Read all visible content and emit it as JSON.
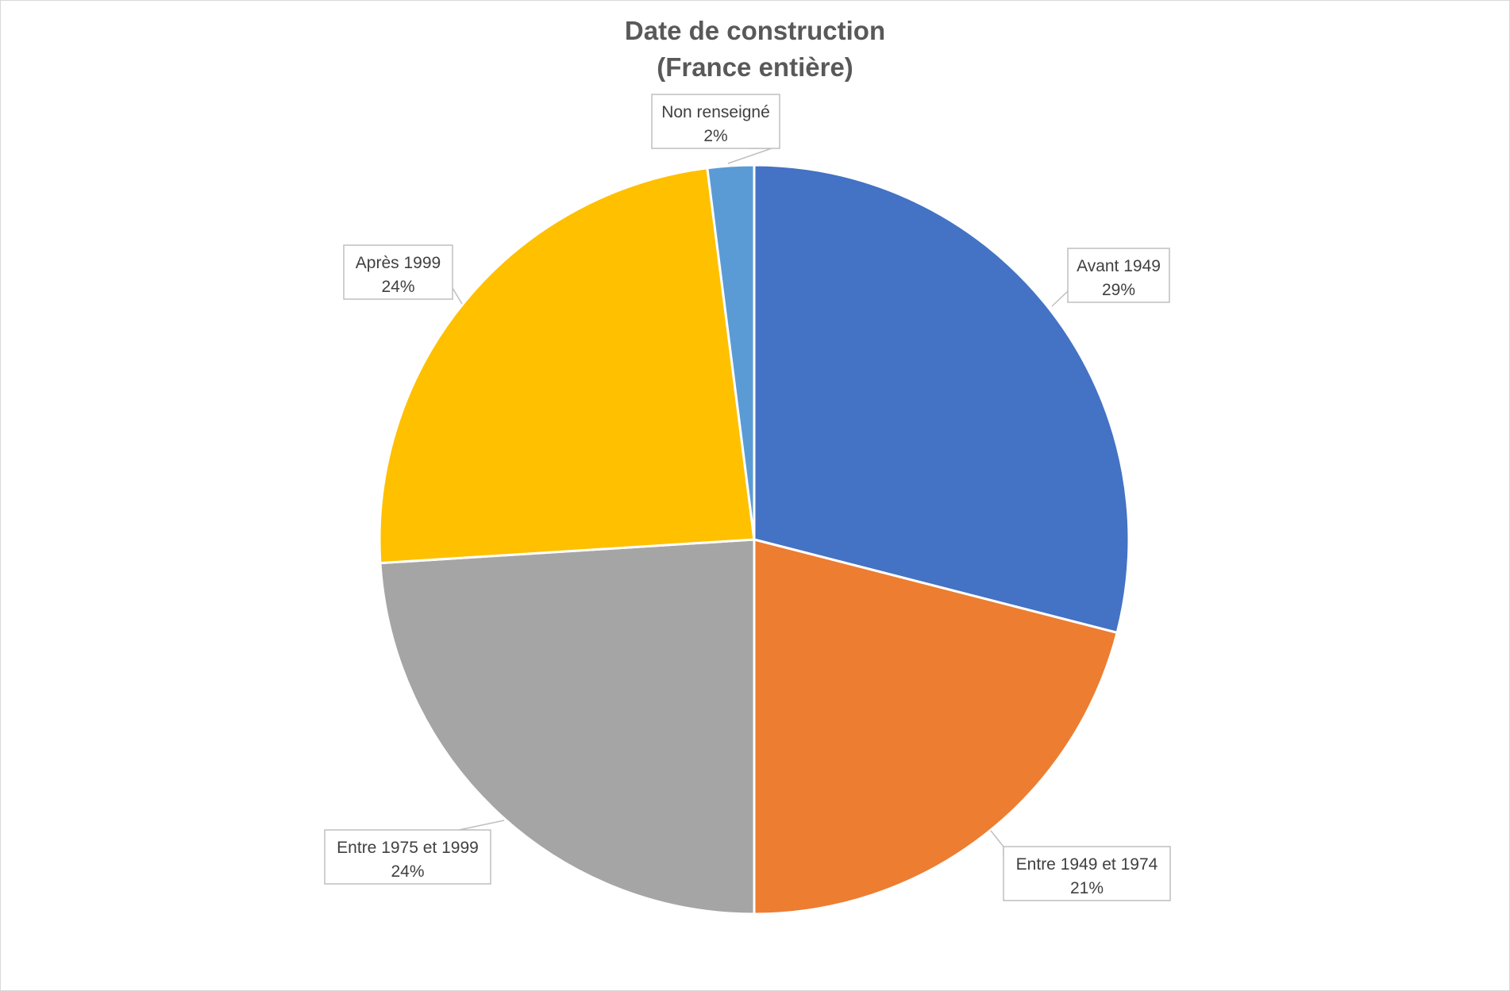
{
  "chart_data": {
    "type": "pie",
    "title": "Date de construction",
    "subtitle": "(France entière)",
    "slices": [
      {
        "name": "Avant 1949",
        "value": 29,
        "label": "29%",
        "color": "#4472C4"
      },
      {
        "name": "Entre 1949 et 1974",
        "value": 21,
        "label": "21%",
        "color": "#ED7D31"
      },
      {
        "name": "Entre 1975 et 1999",
        "value": 24,
        "label": "24%",
        "color": "#A5A5A5"
      },
      {
        "name": "Après 1999",
        "value": 24,
        "label": "24%",
        "color": "#FFC000"
      },
      {
        "name": "Non renseigné",
        "value": 2,
        "label": "2%",
        "color": "#5B9BD5"
      }
    ],
    "start_angle": "12 o'clock",
    "direction": "clockwise",
    "legend": "none",
    "data_labels": "callouts"
  }
}
